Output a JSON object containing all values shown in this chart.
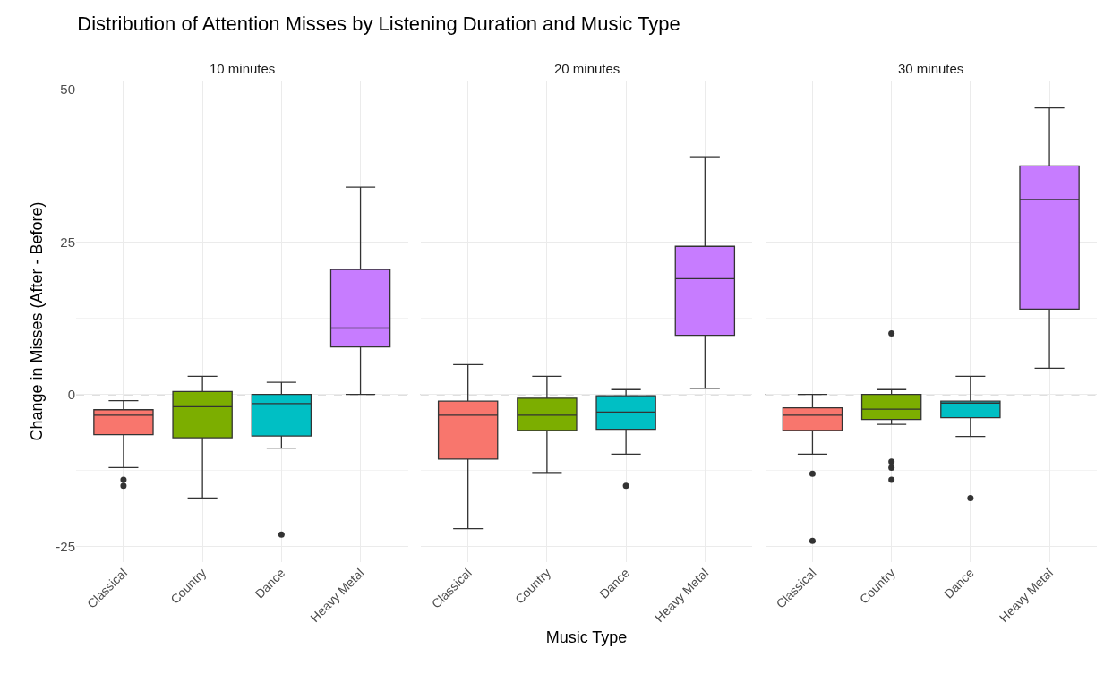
{
  "chart_data": [
    {
      "type": "box",
      "title": "Distribution of Attention Misses by Listening Duration and Music Type",
      "subtitle": "10 minutes",
      "ylabel": "Change in Misses (After - Before)",
      "categories": [
        "Classical",
        "Country",
        "Dance",
        "Heavy Metal"
      ],
      "colors": [
        "#f8766d",
        "#7cae00",
        "#00bfc4",
        "#c77cff"
      ],
      "boxes": [
        {
          "low": -12,
          "q1": -6.6,
          "median": -3.4,
          "q3": -2.5,
          "high": -1,
          "outliers": [
            -14,
            -15
          ]
        },
        {
          "low": -17,
          "q1": -7.1,
          "median": -2,
          "q3": 0.5,
          "high": 3
        },
        {
          "low": -8.8,
          "q1": -6.8,
          "median": -1.5,
          "q3": 0,
          "high": 2,
          "outliers": [
            -23
          ]
        },
        {
          "low": 0,
          "q1": 7.8,
          "median": 10.9,
          "q3": 20.5,
          "high": 34
        }
      ],
      "ylim": [
        -27.5,
        51.5
      ],
      "yticks": [
        -25,
        0,
        25,
        50
      ],
      "grid": true,
      "ref_lines": [
        {
          "axis": "y",
          "value": 0,
          "line_style": "dashed",
          "color": "#808080"
        }
      ]
    },
    {
      "type": "box",
      "subtitle": "20 minutes",
      "xlabel": "Music Type",
      "categories": [
        "Classical",
        "Country",
        "Dance",
        "Heavy Metal"
      ],
      "colors": [
        "#f8766d",
        "#7cae00",
        "#00bfc4",
        "#c77cff"
      ],
      "boxes": [
        {
          "low": -22,
          "q1": -10.6,
          "median": -3.4,
          "q3": -1.1,
          "high": 4.9
        },
        {
          "low": -12.8,
          "q1": -5.9,
          "median": -3.4,
          "q3": -0.6,
          "high": 3
        },
        {
          "low": -9.8,
          "q1": -5.7,
          "median": -2.9,
          "q3": -0.2,
          "high": 0.8,
          "outliers": [
            -15
          ]
        },
        {
          "low": 1,
          "q1": 9.7,
          "median": 19,
          "q3": 24.3,
          "high": 39
        }
      ],
      "ylim": [
        -27.5,
        51.5
      ],
      "yticks": [
        -25,
        0,
        25,
        50
      ],
      "grid": true,
      "tick_labels": "x",
      "ref_lines": [
        {
          "axis": "y",
          "value": 0,
          "line_style": "dashed",
          "color": "#808080"
        }
      ]
    },
    {
      "type": "box",
      "subtitle": "30 minutes",
      "categories": [
        "Classical",
        "Country",
        "Dance",
        "Heavy Metal"
      ],
      "colors": [
        "#f8766d",
        "#7cae00",
        "#00bfc4",
        "#c77cff"
      ],
      "boxes": [
        {
          "low": -9.8,
          "q1": -5.9,
          "median": -3.4,
          "q3": -2.2,
          "high": 0,
          "outliers": [
            -13,
            -24
          ]
        },
        {
          "low": -4.9,
          "q1": -4.1,
          "median": -2.4,
          "q3": 0,
          "high": 0.8,
          "outliers": [
            10,
            -11,
            -12,
            -14
          ]
        },
        {
          "low": -6.9,
          "q1": -3.8,
          "median": -1.4,
          "q3": -1.1,
          "high": 3,
          "outliers": [
            -17
          ]
        },
        {
          "low": 4.3,
          "q1": 14,
          "median": 32,
          "q3": 37.5,
          "high": 47
        }
      ],
      "ylim": [
        -27.5,
        51.5
      ],
      "yticks": [
        -25,
        0,
        25,
        50
      ],
      "grid": true,
      "tick_labels": "x",
      "ref_lines": [
        {
          "axis": "y",
          "value": 0,
          "line_style": "dashed",
          "color": "#808080"
        }
      ]
    }
  ]
}
